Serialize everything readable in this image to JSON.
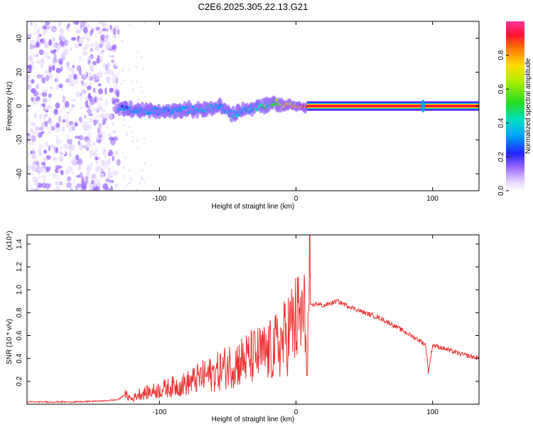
{
  "figure": {
    "title": "C2E6.2025.305.22.13.G21"
  },
  "chart_data": [
    {
      "type": "heatmap",
      "name": "spectrogram",
      "title": "C2E6.2025.305.22.13.G21",
      "xlabel": "Height of straight line (km)",
      "ylabel": "Frequency (Hz)",
      "xlim": [
        -197,
        134
      ],
      "ylim": [
        -50,
        50
      ],
      "xticks": [
        -100,
        0,
        100
      ],
      "yticks": [
        -40,
        -20,
        0,
        20,
        40
      ],
      "colorbar": {
        "label": "Normalized spectral amplitude",
        "range": [
          0,
          1
        ],
        "ticks": [
          "0.0",
          "0.2",
          "0.4",
          "0.6",
          "0.8"
        ]
      },
      "noise_region": {
        "x_from": -197,
        "x_to": -130,
        "mean_amplitude": 0.12
      },
      "signal_track": {
        "x": [
          -130,
          -120,
          -110,
          -100,
          -90,
          -80,
          -70,
          -60,
          -55,
          -50,
          -45,
          -40,
          -35,
          -30,
          -25,
          -20,
          -15,
          -10,
          -5,
          0,
          5,
          10,
          50,
          90,
          93,
          100,
          134
        ],
        "frequency": [
          -1,
          -2,
          -3,
          -3,
          -3,
          -2,
          -2,
          -1,
          0,
          -4,
          -5,
          -3,
          -2,
          -1,
          0,
          1,
          2,
          0,
          1,
          0,
          -1,
          0,
          0,
          0,
          0,
          0,
          0
        ],
        "amplitude": [
          0.35,
          0.35,
          0.38,
          0.36,
          0.37,
          0.38,
          0.4,
          0.42,
          0.35,
          0.38,
          0.4,
          0.38,
          0.42,
          0.45,
          0.45,
          0.5,
          0.6,
          0.7,
          0.75,
          0.8,
          0.9,
          0.95,
          0.95,
          0.95,
          0.5,
          0.95,
          0.95
        ]
      }
    },
    {
      "type": "line",
      "name": "snr",
      "xlabel": "Height of straight line (km)",
      "ylabel": "SNR (10 * v/v)",
      "yscale_label": "(x10⁴)",
      "xlim": [
        -197,
        134
      ],
      "ylim": [
        0,
        1.48
      ],
      "xticks": [
        -100,
        0,
        100
      ],
      "yticks": [
        0.2,
        0.4,
        0.6,
        0.8,
        1.0,
        1.2,
        1.4
      ],
      "color": "#ee3333",
      "series": [
        {
          "name": "SNR",
          "x": [
            -197,
            -180,
            -160,
            -140,
            -130,
            -125,
            -120,
            -115,
            -110,
            -100,
            -90,
            -80,
            -70,
            -60,
            -50,
            -40,
            -30,
            -20,
            -15,
            -10,
            -5,
            0,
            5,
            8,
            10,
            15,
            20,
            30,
            40,
            50,
            60,
            70,
            80,
            90,
            95,
            97,
            100,
            110,
            120,
            134
          ],
          "values": [
            0.02,
            0.02,
            0.02,
            0.03,
            0.04,
            0.09,
            0.05,
            0.1,
            0.11,
            0.14,
            0.17,
            0.2,
            0.26,
            0.3,
            0.37,
            0.42,
            0.47,
            0.5,
            0.55,
            0.6,
            0.72,
            0.8,
            0.85,
            0.75,
            0.85,
            0.88,
            0.86,
            0.9,
            0.85,
            0.8,
            0.76,
            0.7,
            0.63,
            0.56,
            0.52,
            0.28,
            0.52,
            0.48,
            0.44,
            0.4
          ]
        }
      ]
    }
  ]
}
